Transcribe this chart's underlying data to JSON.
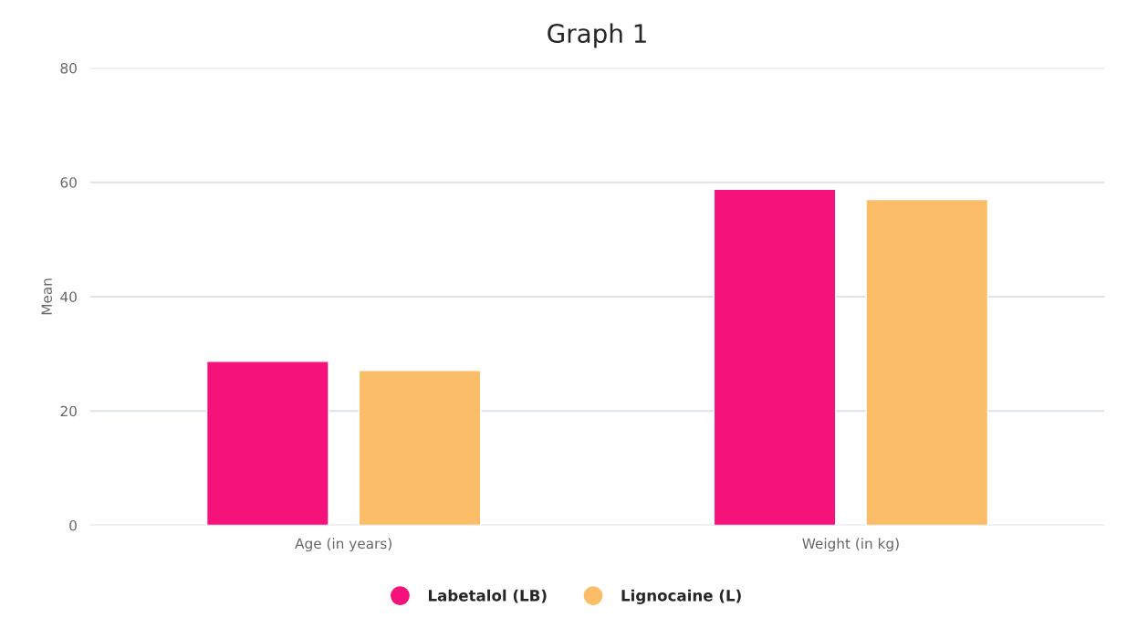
{
  "chart_data": {
    "type": "bar",
    "title": "Graph 1",
    "ylabel": "Mean",
    "categories": [
      "Age (in years)",
      "Weight (in kg)"
    ],
    "series": [
      {
        "name": "Labetalol (LB)",
        "color": "#f5127a",
        "values": [
          28.7,
          58.8
        ]
      },
      {
        "name": "Lignocaine (L)",
        "color": "#fbbd68",
        "values": [
          27.1,
          57.0
        ]
      }
    ],
    "ylim": [
      0,
      80
    ],
    "yticks": [
      0,
      20,
      40,
      60,
      80
    ],
    "grid": "y",
    "legend": "bottom"
  }
}
